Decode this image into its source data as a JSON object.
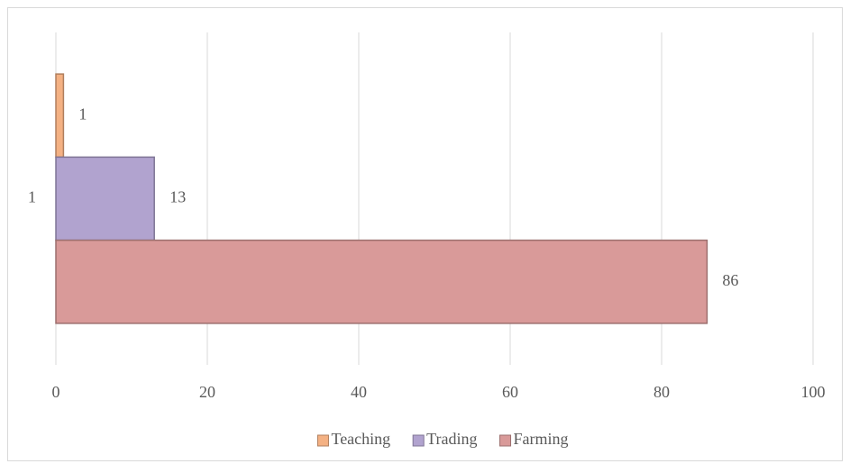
{
  "chart_data": {
    "type": "bar",
    "orientation": "horizontal",
    "categories": [
      "1"
    ],
    "series": [
      {
        "name": "Teaching",
        "color": "#f4b183",
        "values": [
          1
        ]
      },
      {
        "name": "Trading",
        "color": "#b1a3cf",
        "values": [
          13
        ]
      },
      {
        "name": "Farming",
        "color": "#d99a99",
        "values": [
          86
        ]
      }
    ],
    "xlim": [
      0,
      100
    ],
    "xticks": [
      0,
      20,
      40,
      60,
      80,
      100
    ],
    "grid": true,
    "legend": "bottom"
  }
}
